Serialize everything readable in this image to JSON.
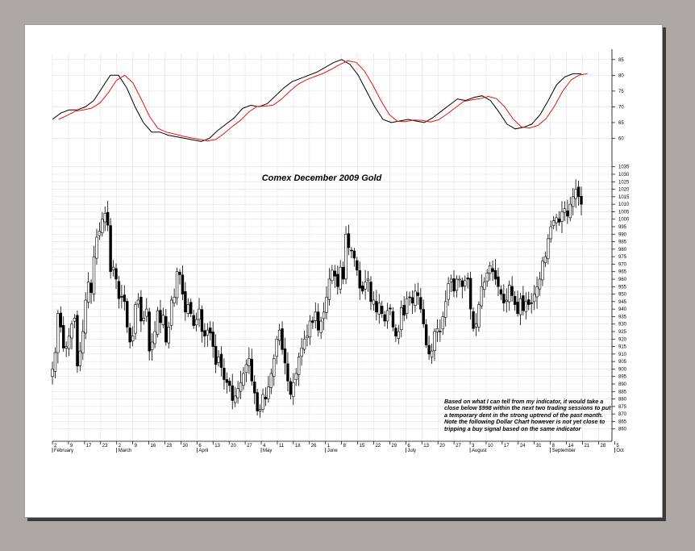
{
  "chart_data": [
    {
      "type": "line",
      "title": "",
      "ylim": [
        55,
        87
      ],
      "y_ticks": [
        60,
        65,
        70,
        75,
        80,
        85
      ],
      "grid": true,
      "x_points": [
        [
          0,
          66
        ],
        [
          4,
          68
        ],
        [
          8,
          69
        ],
        [
          12,
          69
        ],
        [
          16,
          70
        ],
        [
          20,
          72
        ],
        [
          24,
          76
        ],
        [
          28,
          80
        ],
        [
          32,
          80
        ],
        [
          36,
          76
        ],
        [
          40,
          70
        ],
        [
          44,
          65
        ],
        [
          48,
          62
        ],
        [
          52,
          62
        ],
        [
          56,
          61
        ],
        [
          60,
          60.5
        ],
        [
          64,
          60
        ],
        [
          68,
          59.5
        ],
        [
          72,
          59
        ],
        [
          76,
          60
        ],
        [
          80,
          62.5
        ],
        [
          84,
          64.5
        ],
        [
          88,
          66.5
        ],
        [
          92,
          69.5
        ],
        [
          96,
          70.5
        ],
        [
          100,
          70
        ],
        [
          104,
          71
        ],
        [
          108,
          73.5
        ],
        [
          112,
          76
        ],
        [
          116,
          78
        ],
        [
          120,
          79
        ],
        [
          124,
          80
        ],
        [
          128,
          81
        ],
        [
          132,
          82.5
        ],
        [
          136,
          84
        ],
        [
          140,
          85
        ],
        [
          144,
          83.5
        ],
        [
          148,
          80
        ],
        [
          152,
          75
        ],
        [
          156,
          70
        ],
        [
          160,
          66
        ],
        [
          164,
          65
        ],
        [
          168,
          65.5
        ],
        [
          172,
          66
        ],
        [
          176,
          65.5
        ],
        [
          180,
          65
        ],
        [
          184,
          66.5
        ],
        [
          188,
          68.5
        ],
        [
          192,
          70.5
        ],
        [
          196,
          72.5
        ],
        [
          200,
          72
        ],
        [
          204,
          73
        ],
        [
          208,
          73.5
        ],
        [
          212,
          72
        ],
        [
          216,
          68.5
        ],
        [
          220,
          64.5
        ],
        [
          224,
          63
        ],
        [
          228,
          63.5
        ],
        [
          232,
          64.5
        ],
        [
          236,
          67.5
        ],
        [
          240,
          72
        ],
        [
          244,
          77
        ],
        [
          248,
          79.5
        ],
        [
          252,
          80.5
        ],
        [
          256,
          80.5
        ]
      ],
      "series": [
        {
          "color": "#000000",
          "offset": 0
        },
        {
          "color": "#e8140c",
          "offset": 3
        }
      ],
      "x_ticks": [
        "2",
        "9",
        "17",
        "23",
        "2",
        "9",
        "16",
        "23",
        "30",
        "6",
        "13",
        "20",
        "27",
        "4",
        "11",
        "18",
        "26",
        "1",
        "8",
        "15",
        "22",
        "29",
        "6",
        "13",
        "20",
        "27",
        "3",
        "10",
        "17",
        "24",
        "31",
        "8",
        "14",
        "21",
        "28",
        "5"
      ],
      "months": [
        "February",
        "March",
        "April",
        "May",
        "June",
        "July",
        "August",
        "September",
        "Oct"
      ]
    },
    {
      "type": "candlestick",
      "title": "Comex December 2009 Gold",
      "ylim": [
        855,
        1037
      ],
      "y_ticks": [
        860,
        865,
        870,
        875,
        880,
        885,
        890,
        895,
        900,
        905,
        910,
        915,
        920,
        925,
        930,
        935,
        940,
        945,
        950,
        955,
        960,
        965,
        970,
        975,
        980,
        985,
        990,
        995,
        1000,
        1005,
        1010,
        1015,
        1020,
        1025,
        1030,
        1035
      ],
      "grid": true,
      "closes": [
        900,
        911,
        937,
        928,
        914,
        915,
        922,
        930,
        934,
        902,
        912,
        925,
        946,
        958,
        951,
        975,
        988,
        992,
        1000,
        1004,
        996,
        965,
        968,
        960,
        947,
        948,
        945,
        928,
        918,
        922,
        943,
        946,
        932,
        934,
        940,
        912,
        918,
        925,
        939,
        931,
        936,
        918,
        928,
        946,
        948,
        965,
        963,
        950,
        938,
        943,
        937,
        929,
        933,
        940,
        925,
        922,
        926,
        924,
        915,
        903,
        908,
        901,
        893,
        891,
        889,
        879,
        882,
        887,
        891,
        897,
        903,
        907,
        892,
        884,
        872,
        873,
        883,
        880,
        888,
        897,
        907,
        920,
        926,
        913,
        904,
        892,
        883,
        891,
        897,
        908,
        914,
        920,
        922,
        932,
        931,
        938,
        926,
        932,
        938,
        948,
        960,
        966,
        962,
        955,
        968,
        960,
        990,
        981,
        979,
        974,
        966,
        954,
        952,
        958,
        960,
        945,
        946,
        938,
        944,
        937,
        932,
        939,
        940,
        928,
        922,
        925,
        941,
        936,
        947,
        948,
        944,
        952,
        949,
        940,
        930,
        916,
        910,
        912,
        925,
        927,
        925,
        935,
        945,
        957,
        960,
        952,
        960,
        960,
        955,
        959,
        960,
        940,
        927,
        930,
        943,
        955,
        958,
        964,
        969,
        965,
        960,
        955,
        950,
        944,
        946,
        956,
        949,
        943,
        937,
        947,
        939,
        945,
        943,
        944,
        950,
        955,
        960,
        972,
        975,
        987,
        995,
        999,
        1001,
        998,
        1005,
        1007,
        1002,
        1010,
        1015,
        1020,
        1015,
        1010
      ],
      "note": "Based on what I can tell from my indicator, it would take a close below $998 within the next two trading sessions to put a temporary dent in the strong uptrend of the past month. Note the following Dollar Chart however is not yet close to tripping a buy signal based on the same indicator",
      "x_ticks": [
        "2",
        "9",
        "17",
        "23",
        "2",
        "9",
        "16",
        "23",
        "30",
        "6",
        "13",
        "20",
        "27",
        "4",
        "11",
        "18",
        "26",
        "1",
        "8",
        "15",
        "22",
        "29",
        "6",
        "13",
        "20",
        "27",
        "3",
        "10",
        "17",
        "24",
        "31",
        "8",
        "14",
        "21",
        "28",
        "5"
      ],
      "months": [
        "February",
        "March",
        "April",
        "May",
        "June",
        "July",
        "August",
        "September",
        "Oct"
      ]
    }
  ]
}
